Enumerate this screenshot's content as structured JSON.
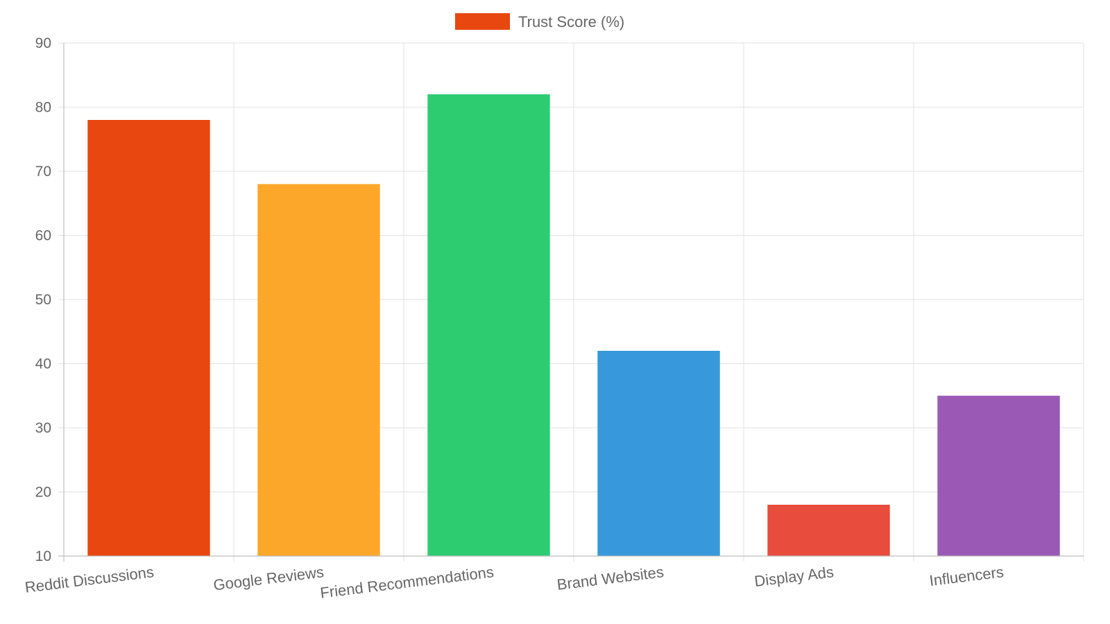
{
  "chart_data": {
    "type": "bar",
    "title": "",
    "xlabel": "",
    "ylabel": "",
    "categories": [
      "Reddit Discussions",
      "Google Reviews",
      "Friend Recommendations",
      "Brand Websites",
      "Display Ads",
      "Influencers"
    ],
    "series": [
      {
        "name": "Trust Score (%)",
        "values": [
          78,
          68,
          82,
          42,
          18,
          35
        ],
        "colors": [
          "#e8470f",
          "#fda72a",
          "#2ecc71",
          "#3799db",
          "#e74c3c",
          "#9b59b6"
        ]
      }
    ],
    "ylim": [
      10,
      90
    ],
    "yticks": [
      10,
      20,
      30,
      40,
      50,
      60,
      70,
      80,
      90
    ],
    "grid": true,
    "legend": {
      "position": "top",
      "swatch_color": "#e8470f"
    }
  }
}
